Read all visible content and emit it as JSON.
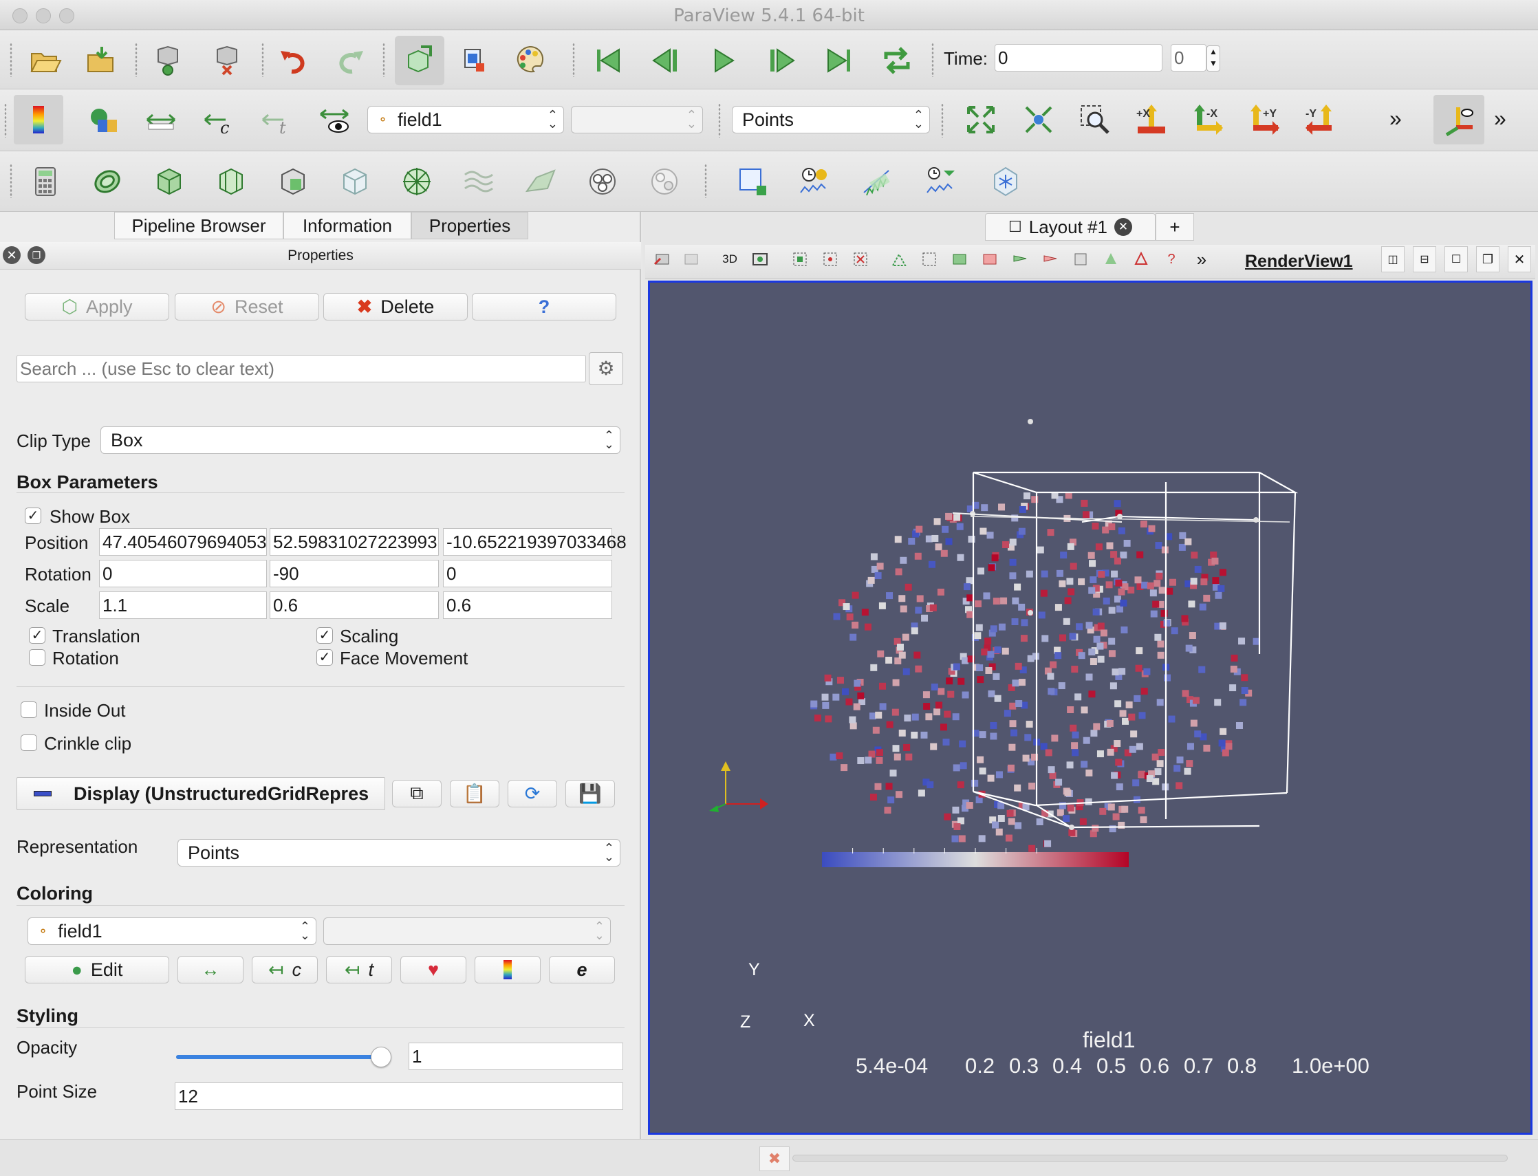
{
  "window": {
    "title": "ParaView 5.4.1 64-bit"
  },
  "toolbar": {
    "time_label": "Time:",
    "time_value": "0",
    "time_index": "0",
    "array_select": "field1",
    "array_component": "",
    "representation": "Points",
    "view_buttons": [
      "+X",
      "-X",
      "+Y",
      "-Y"
    ]
  },
  "left_panel": {
    "tabs": [
      "Pipeline Browser",
      "Information",
      "Properties"
    ],
    "active_tab": "Properties",
    "panel_title": "Properties",
    "buttons": {
      "apply": "Apply",
      "reset": "Reset",
      "delete": "Delete",
      "help": "?"
    },
    "search_placeholder": "Search ... (use Esc to clear text)",
    "clip_type_label": "Clip Type",
    "clip_type_value": "Box",
    "box_parameters_title": "Box Parameters",
    "show_box": {
      "label": "Show Box",
      "checked": true
    },
    "position": {
      "label": "Position",
      "values": [
        "47.40546079694053",
        "52.59831027223993",
        "-10.652219397033468"
      ]
    },
    "rotation": {
      "label": "Rotation",
      "values": [
        "0",
        "-90",
        "0"
      ]
    },
    "scale": {
      "label": "Scale",
      "values": [
        "1.1",
        "0.6",
        "0.6"
      ]
    },
    "options": {
      "translation": {
        "label": "Translation",
        "checked": true
      },
      "scaling": {
        "label": "Scaling",
        "checked": true
      },
      "rotation": {
        "label": "Rotation",
        "checked": false
      },
      "face_movement": {
        "label": "Face Movement",
        "checked": true
      }
    },
    "inside_out": {
      "label": "Inside Out",
      "checked": false
    },
    "crinkle_clip": {
      "label": "Crinkle clip",
      "checked": false
    },
    "display_title": "Display (UnstructuredGridRepres",
    "representation_label": "Representation",
    "representation_value": "Points",
    "coloring_title": "Coloring",
    "coloring_array": "field1",
    "coloring_component": "",
    "edit_label": "Edit",
    "styling_title": "Styling",
    "opacity_label": "Opacity",
    "opacity_value": "1",
    "opacity_level": 1.0,
    "point_size_label": "Point Size",
    "point_size_value": "12"
  },
  "layout": {
    "tab_label": "Layout #1",
    "add_tab": "+",
    "view_name": "RenderView1",
    "mode_3d": "3D"
  },
  "render_view": {
    "background": "#52566e",
    "axes": {
      "x": "X",
      "y": "Y",
      "z": "Z"
    },
    "colorbar": {
      "title": "field1",
      "min_label": "5.4e-04",
      "max_label": "1.0e+00",
      "tick_labels": [
        "0.2",
        "0.3",
        "0.4",
        "0.5",
        "0.6",
        "0.7",
        "0.8"
      ],
      "colors": [
        "#3b4cc0",
        "#dddddd",
        "#b40426"
      ]
    }
  }
}
